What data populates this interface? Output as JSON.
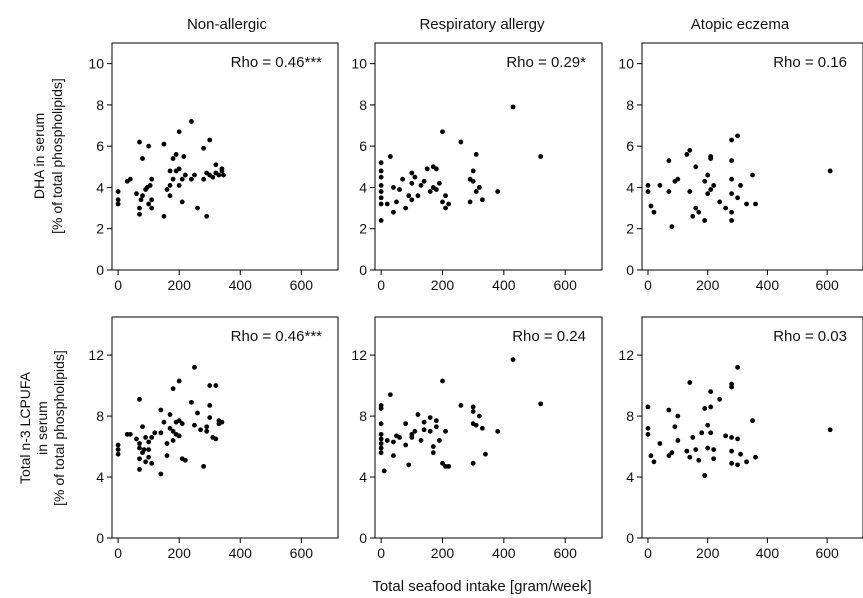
{
  "figure": {
    "column_titles": [
      "Non-allergic",
      "Respiratory allergy",
      "Atopic eczema"
    ],
    "row_ylabels": [
      [
        "DHA in serum",
        "[% of total phospholipids]"
      ],
      [
        "Total n-3 LCPUFA",
        "in serum",
        "[% of total phospholipids]"
      ]
    ],
    "shared_xlabel": "Total seafood intake [gram/week]",
    "marker_color": "#000000"
  },
  "chart_data": [
    {
      "type": "scatter",
      "row": 0,
      "col": 0,
      "annotation": "Rho = 0.46***",
      "xlim": [
        -20,
        720
      ],
      "ylim": [
        0,
        11
      ],
      "xticks": [
        0,
        200,
        400,
        600
      ],
      "yticks": [
        0,
        2,
        4,
        6,
        8,
        10
      ],
      "points": [
        [
          0,
          3.8
        ],
        [
          0,
          3.4
        ],
        [
          0,
          3.2
        ],
        [
          30,
          4.3
        ],
        [
          40,
          4.4
        ],
        [
          60,
          3.7
        ],
        [
          70,
          6.2
        ],
        [
          70,
          3.0
        ],
        [
          70,
          2.7
        ],
        [
          75,
          3.4
        ],
        [
          80,
          3.6
        ],
        [
          80,
          5.4
        ],
        [
          90,
          3.9
        ],
        [
          95,
          4.0
        ],
        [
          100,
          3.2
        ],
        [
          100,
          6.0
        ],
        [
          105,
          4.1
        ],
        [
          110,
          4.4
        ],
        [
          110,
          3.4
        ],
        [
          110,
          3.0
        ],
        [
          150,
          6.1
        ],
        [
          150,
          2.6
        ],
        [
          160,
          3.9
        ],
        [
          170,
          4.8
        ],
        [
          170,
          4.1
        ],
        [
          170,
          3.6
        ],
        [
          180,
          5.4
        ],
        [
          180,
          4.4
        ],
        [
          190,
          4.8
        ],
        [
          190,
          5.6
        ],
        [
          200,
          4.9
        ],
        [
          200,
          6.7
        ],
        [
          200,
          4.1
        ],
        [
          210,
          4.4
        ],
        [
          210,
          3.3
        ],
        [
          215,
          5.5
        ],
        [
          220,
          4.6
        ],
        [
          240,
          7.2
        ],
        [
          240,
          4.4
        ],
        [
          250,
          4.6
        ],
        [
          260,
          3.0
        ],
        [
          280,
          4.4
        ],
        [
          280,
          5.9
        ],
        [
          290,
          2.6
        ],
        [
          290,
          4.7
        ],
        [
          300,
          4.6
        ],
        [
          300,
          6.3
        ],
        [
          310,
          4.5
        ],
        [
          320,
          5.1
        ],
        [
          320,
          4.7
        ],
        [
          330,
          4.6
        ],
        [
          340,
          4.8
        ],
        [
          340,
          4.9
        ],
        [
          345,
          4.6
        ]
      ]
    },
    {
      "type": "scatter",
      "row": 0,
      "col": 1,
      "annotation": "Rho = 0.29*",
      "xlim": [
        -20,
        720
      ],
      "ylim": [
        0,
        11
      ],
      "xticks": [
        0,
        200,
        400,
        600
      ],
      "yticks": [
        0,
        2,
        4,
        6,
        8,
        10
      ],
      "points": [
        [
          0,
          5.2
        ],
        [
          0,
          4.8
        ],
        [
          0,
          4.5
        ],
        [
          0,
          4.1
        ],
        [
          0,
          3.8
        ],
        [
          0,
          3.5
        ],
        [
          0,
          3.2
        ],
        [
          0,
          2.4
        ],
        [
          20,
          3.2
        ],
        [
          30,
          5.5
        ],
        [
          40,
          4.0
        ],
        [
          40,
          2.8
        ],
        [
          50,
          3.3
        ],
        [
          60,
          3.9
        ],
        [
          70,
          4.4
        ],
        [
          80,
          3.0
        ],
        [
          90,
          3.6
        ],
        [
          100,
          4.7
        ],
        [
          100,
          4.2
        ],
        [
          100,
          3.4
        ],
        [
          110,
          4.5
        ],
        [
          120,
          3.6
        ],
        [
          130,
          4.1
        ],
        [
          140,
          4.3
        ],
        [
          150,
          4.9
        ],
        [
          160,
          3.8
        ],
        [
          170,
          5.0
        ],
        [
          170,
          4.0
        ],
        [
          180,
          4.9
        ],
        [
          180,
          3.9
        ],
        [
          190,
          4.2
        ],
        [
          200,
          6.7
        ],
        [
          200,
          3.3
        ],
        [
          210,
          3.6
        ],
        [
          210,
          3.0
        ],
        [
          220,
          3.2
        ],
        [
          260,
          6.2
        ],
        [
          290,
          4.4
        ],
        [
          290,
          3.3
        ],
        [
          300,
          4.8
        ],
        [
          300,
          4.3
        ],
        [
          310,
          5.6
        ],
        [
          310,
          3.8
        ],
        [
          320,
          4.0
        ],
        [
          330,
          3.4
        ],
        [
          380,
          3.8
        ],
        [
          430,
          7.9
        ],
        [
          520,
          5.5
        ]
      ]
    },
    {
      "type": "scatter",
      "row": 0,
      "col": 2,
      "annotation": "Rho = 0.16",
      "xlim": [
        -20,
        720
      ],
      "ylim": [
        0,
        11
      ],
      "xticks": [
        0,
        200,
        400,
        600
      ],
      "yticks": [
        0,
        2,
        4,
        6,
        8,
        10
      ],
      "points": [
        [
          0,
          4.1
        ],
        [
          0,
          3.8
        ],
        [
          10,
          3.1
        ],
        [
          20,
          2.8
        ],
        [
          40,
          4.1
        ],
        [
          70,
          5.3
        ],
        [
          70,
          3.8
        ],
        [
          80,
          2.1
        ],
        [
          90,
          4.3
        ],
        [
          100,
          4.4
        ],
        [
          130,
          5.6
        ],
        [
          140,
          5.8
        ],
        [
          140,
          3.8
        ],
        [
          150,
          2.6
        ],
        [
          160,
          5.0
        ],
        [
          160,
          3.0
        ],
        [
          170,
          2.8
        ],
        [
          190,
          2.4
        ],
        [
          190,
          4.3
        ],
        [
          200,
          4.6
        ],
        [
          200,
          3.7
        ],
        [
          210,
          5.4
        ],
        [
          210,
          5.5
        ],
        [
          210,
          3.9
        ],
        [
          220,
          4.1
        ],
        [
          240,
          3.3
        ],
        [
          260,
          3.0
        ],
        [
          280,
          2.4
        ],
        [
          280,
          2.8
        ],
        [
          280,
          3.7
        ],
        [
          280,
          4.4
        ],
        [
          280,
          5.3
        ],
        [
          280,
          6.3
        ],
        [
          300,
          6.5
        ],
        [
          300,
          3.5
        ],
        [
          310,
          4.1
        ],
        [
          330,
          3.2
        ],
        [
          350,
          4.6
        ],
        [
          360,
          3.2
        ],
        [
          610,
          4.8
        ]
      ]
    },
    {
      "type": "scatter",
      "row": 1,
      "col": 0,
      "annotation": "Rho = 0.46***",
      "xlim": [
        -20,
        720
      ],
      "ylim": [
        0,
        14.5
      ],
      "xticks": [
        0,
        200,
        400,
        600
      ],
      "yticks": [
        0,
        4,
        8,
        12
      ],
      "points": [
        [
          0,
          6.1
        ],
        [
          0,
          5.8
        ],
        [
          0,
          5.5
        ],
        [
          30,
          6.8
        ],
        [
          40,
          6.8
        ],
        [
          60,
          6.5
        ],
        [
          70,
          9.1
        ],
        [
          70,
          6.2
        ],
        [
          70,
          5.9
        ],
        [
          70,
          5.2
        ],
        [
          70,
          4.5
        ],
        [
          80,
          7.3
        ],
        [
          80,
          5.6
        ],
        [
          85,
          5.8
        ],
        [
          90,
          6.6
        ],
        [
          90,
          5.0
        ],
        [
          100,
          6.3
        ],
        [
          100,
          5.8
        ],
        [
          100,
          5.3
        ],
        [
          110,
          6.6
        ],
        [
          110,
          4.9
        ],
        [
          120,
          6.9
        ],
        [
          140,
          8.4
        ],
        [
          140,
          6.9
        ],
        [
          140,
          4.2
        ],
        [
          150,
          7.6
        ],
        [
          160,
          5.4
        ],
        [
          160,
          6.2
        ],
        [
          170,
          8.1
        ],
        [
          170,
          7.2
        ],
        [
          180,
          6.4
        ],
        [
          180,
          7.0
        ],
        [
          180,
          9.8
        ],
        [
          190,
          6.8
        ],
        [
          190,
          7.6
        ],
        [
          200,
          10.3
        ],
        [
          200,
          7.7
        ],
        [
          200,
          6.7
        ],
        [
          210,
          7.5
        ],
        [
          210,
          5.2
        ],
        [
          220,
          5.1
        ],
        [
          240,
          8.9
        ],
        [
          250,
          11.2
        ],
        [
          250,
          7.4
        ],
        [
          260,
          8.2
        ],
        [
          270,
          7.1
        ],
        [
          280,
          4.7
        ],
        [
          290,
          7.3
        ],
        [
          290,
          7.0
        ],
        [
          300,
          8.7
        ],
        [
          300,
          10.0
        ],
        [
          300,
          7.9
        ],
        [
          310,
          6.6
        ],
        [
          320,
          10.0
        ],
        [
          320,
          6.5
        ],
        [
          330,
          7.7
        ],
        [
          330,
          7.5
        ],
        [
          340,
          7.6
        ]
      ]
    },
    {
      "type": "scatter",
      "row": 1,
      "col": 1,
      "annotation": "Rho = 0.24",
      "xlim": [
        -20,
        720
      ],
      "ylim": [
        0,
        14.5
      ],
      "xticks": [
        0,
        200,
        400,
        600
      ],
      "yticks": [
        0,
        4,
        8,
        12
      ],
      "points": [
        [
          0,
          8.7
        ],
        [
          0,
          8.5
        ],
        [
          0,
          7.5
        ],
        [
          0,
          6.8
        ],
        [
          0,
          6.5
        ],
        [
          0,
          6.2
        ],
        [
          0,
          5.9
        ],
        [
          0,
          5.6
        ],
        [
          10,
          4.4
        ],
        [
          20,
          6.4
        ],
        [
          30,
          9.4
        ],
        [
          40,
          6.3
        ],
        [
          40,
          5.4
        ],
        [
          50,
          6.7
        ],
        [
          60,
          6.6
        ],
        [
          80,
          7.5
        ],
        [
          80,
          6.1
        ],
        [
          90,
          4.8
        ],
        [
          100,
          6.8
        ],
        [
          100,
          6.6
        ],
        [
          110,
          7.0
        ],
        [
          120,
          8.1
        ],
        [
          130,
          6.4
        ],
        [
          140,
          7.1
        ],
        [
          140,
          7.6
        ],
        [
          160,
          7.9
        ],
        [
          160,
          7.0
        ],
        [
          170,
          6.0
        ],
        [
          170,
          5.6
        ],
        [
          180,
          7.7
        ],
        [
          180,
          7.3
        ],
        [
          190,
          6.4
        ],
        [
          200,
          10.3
        ],
        [
          200,
          4.9
        ],
        [
          210,
          7.0
        ],
        [
          210,
          4.7
        ],
        [
          220,
          4.7
        ],
        [
          260,
          8.7
        ],
        [
          300,
          8.6
        ],
        [
          300,
          8.3
        ],
        [
          300,
          7.5
        ],
        [
          300,
          4.9
        ],
        [
          310,
          7.4
        ],
        [
          320,
          8.0
        ],
        [
          330,
          7.2
        ],
        [
          340,
          5.5
        ],
        [
          380,
          7.0
        ],
        [
          430,
          11.7
        ],
        [
          520,
          8.8
        ]
      ]
    },
    {
      "type": "scatter",
      "row": 1,
      "col": 2,
      "annotation": "Rho = 0.03",
      "xlim": [
        -20,
        720
      ],
      "ylim": [
        0,
        14.5
      ],
      "xticks": [
        0,
        200,
        400,
        600
      ],
      "yticks": [
        0,
        4,
        8,
        12
      ],
      "points": [
        [
          0,
          8.6
        ],
        [
          0,
          7.2
        ],
        [
          0,
          6.8
        ],
        [
          10,
          5.4
        ],
        [
          20,
          5.0
        ],
        [
          40,
          6.2
        ],
        [
          70,
          8.4
        ],
        [
          70,
          5.4
        ],
        [
          80,
          5.6
        ],
        [
          90,
          7.3
        ],
        [
          100,
          6.4
        ],
        [
          100,
          8.0
        ],
        [
          130,
          5.7
        ],
        [
          140,
          10.2
        ],
        [
          140,
          5.3
        ],
        [
          150,
          6.6
        ],
        [
          160,
          5.8
        ],
        [
          170,
          5.1
        ],
        [
          180,
          6.9
        ],
        [
          190,
          8.5
        ],
        [
          190,
          4.1
        ],
        [
          200,
          5.9
        ],
        [
          200,
          7.4
        ],
        [
          210,
          9.6
        ],
        [
          210,
          8.6
        ],
        [
          210,
          6.9
        ],
        [
          220,
          5.8
        ],
        [
          220,
          5.2
        ],
        [
          240,
          9.1
        ],
        [
          260,
          6.7
        ],
        [
          280,
          10.1
        ],
        [
          280,
          9.9
        ],
        [
          280,
          6.6
        ],
        [
          280,
          4.9
        ],
        [
          280,
          5.7
        ],
        [
          300,
          11.2
        ],
        [
          300,
          6.5
        ],
        [
          300,
          4.8
        ],
        [
          310,
          5.5
        ],
        [
          330,
          5.0
        ],
        [
          350,
          7.7
        ],
        [
          360,
          5.3
        ],
        [
          610,
          7.1
        ]
      ]
    }
  ]
}
